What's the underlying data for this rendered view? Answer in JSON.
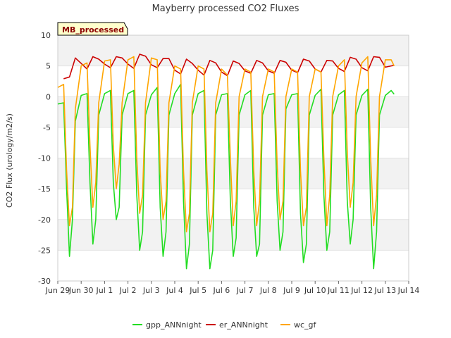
{
  "chart_data": {
    "type": "line",
    "title": "Mayberry processed CO2 Fluxes",
    "ylabel": "CO2 Flux (urology/m2/s)",
    "xlabel": "",
    "badge": "MB_processed",
    "ylim": [
      -30,
      10
    ],
    "yticks": [
      10,
      5,
      0,
      -5,
      -10,
      -15,
      -20,
      -25,
      -30
    ],
    "xlim": [
      "2016-06-29",
      "2016-07-14"
    ],
    "xticks": [
      {
        "date": "2016-06-29",
        "label": "Jun 29"
      },
      {
        "date": "2016-06-30",
        "label": "Jun 30"
      },
      {
        "date": "2016-07-01",
        "label": "Jul 1"
      },
      {
        "date": "2016-07-02",
        "label": "Jul 2"
      },
      {
        "date": "2016-07-03",
        "label": "Jul 3"
      },
      {
        "date": "2016-07-04",
        "label": "Jul 4"
      },
      {
        "date": "2016-07-05",
        "label": "Jul 5"
      },
      {
        "date": "2016-07-06",
        "label": "Jul 6"
      },
      {
        "date": "2016-07-07",
        "label": "Jul 7"
      },
      {
        "date": "2016-07-08",
        "label": "Jul 8"
      },
      {
        "date": "2016-07-09",
        "label": "Jul 9"
      },
      {
        "date": "2016-07-10",
        "label": "Jul 10"
      },
      {
        "date": "2016-07-11",
        "label": "Jul 11"
      },
      {
        "date": "2016-07-12",
        "label": "Jul 12"
      },
      {
        "date": "2016-07-13",
        "label": "Jul 13"
      },
      {
        "date": "2016-07-14",
        "label": "Jul 14"
      }
    ],
    "grid": "horizontal bands",
    "legend_position": "bottom",
    "series": [
      {
        "name": "gpp_ANNnight",
        "color": "#22dd22",
        "x": [
          "2016-06-29",
          "2016-06-29 06:00",
          "2016-06-29 09:00",
          "2016-06-29 12:00",
          "2016-06-29 15:00",
          "2016-06-29 18:00",
          "2016-06-30",
          "2016-06-30 06:00",
          "2016-06-30 09:00",
          "2016-06-30 12:00",
          "2016-06-30 15:00",
          "2016-06-30 18:00",
          "2016-07-01",
          "2016-07-01 06:00",
          "2016-07-01 09:00",
          "2016-07-01 12:00",
          "2016-07-01 15:00",
          "2016-07-01 18:00",
          "2016-07-02",
          "2016-07-02 06:00",
          "2016-07-02 09:00",
          "2016-07-02 12:00",
          "2016-07-02 15:00",
          "2016-07-02 18:00",
          "2016-07-03",
          "2016-07-03 06:00",
          "2016-07-03 09:00",
          "2016-07-03 12:00",
          "2016-07-03 15:00",
          "2016-07-03 18:00",
          "2016-07-04",
          "2016-07-04 06:00",
          "2016-07-04 09:00",
          "2016-07-04 12:00",
          "2016-07-04 15:00",
          "2016-07-04 18:00",
          "2016-07-05",
          "2016-07-05 06:00",
          "2016-07-05 09:00",
          "2016-07-05 12:00",
          "2016-07-05 15:00",
          "2016-07-05 18:00",
          "2016-07-06",
          "2016-07-06 06:00",
          "2016-07-06 09:00",
          "2016-07-06 12:00",
          "2016-07-06 15:00",
          "2016-07-06 18:00",
          "2016-07-07",
          "2016-07-07 06:00",
          "2016-07-07 09:00",
          "2016-07-07 12:00",
          "2016-07-07 15:00",
          "2016-07-07 18:00",
          "2016-07-08",
          "2016-07-08 06:00",
          "2016-07-08 09:00",
          "2016-07-08 12:00",
          "2016-07-08 15:00",
          "2016-07-08 18:00",
          "2016-07-09",
          "2016-07-09 06:00",
          "2016-07-09 09:00",
          "2016-07-09 12:00",
          "2016-07-09 15:00",
          "2016-07-09 18:00",
          "2016-07-10",
          "2016-07-10 06:00",
          "2016-07-10 09:00",
          "2016-07-10 12:00",
          "2016-07-10 15:00",
          "2016-07-10 18:00",
          "2016-07-11",
          "2016-07-11 06:00",
          "2016-07-11 09:00",
          "2016-07-11 12:00",
          "2016-07-11 15:00",
          "2016-07-11 18:00",
          "2016-07-12",
          "2016-07-12 06:00",
          "2016-07-12 09:00",
          "2016-07-12 12:00",
          "2016-07-12 15:00",
          "2016-07-12 18:00",
          "2016-07-13",
          "2016-07-13 06:00",
          "2016-07-13 09:00"
        ],
        "values": [
          -1.2,
          -1.0,
          -15,
          -26,
          -20,
          -4,
          0.2,
          0.5,
          -14,
          -24,
          -20,
          -3,
          0.5,
          1.0,
          -14,
          -20,
          -18,
          -3,
          0.5,
          1.0,
          -16,
          -25,
          -22,
          -3,
          0.3,
          1.5,
          -18,
          -26,
          -22,
          -3,
          0.5,
          2.0,
          -17,
          -28,
          -24,
          -3,
          0.5,
          1.0,
          -19,
          -28,
          -25,
          -3,
          0.3,
          0.5,
          -17,
          -26,
          -23,
          -3,
          0.3,
          1.0,
          -18,
          -26,
          -24,
          -3,
          0.3,
          0.5,
          -17,
          -25,
          -22,
          -2,
          0.3,
          0.5,
          -19,
          -27,
          -24,
          -3,
          0.2,
          1.2,
          -16,
          -25,
          -22,
          -3,
          0.3,
          1.0,
          -17,
          -24,
          -20,
          -3,
          0.2,
          1.2,
          -18,
          -28,
          -22,
          -3,
          0.2,
          1.0,
          0.4
        ]
      },
      {
        "name": "er_ANNnight",
        "color": "#cc0000",
        "x": [
          "2016-06-29 06:00",
          "2016-06-29 12:00",
          "2016-06-29 18:00",
          "2016-06-30",
          "2016-06-30 06:00",
          "2016-06-30 12:00",
          "2016-06-30 18:00",
          "2016-07-01",
          "2016-07-01 06:00",
          "2016-07-01 12:00",
          "2016-07-01 18:00",
          "2016-07-02",
          "2016-07-02 06:00",
          "2016-07-02 12:00",
          "2016-07-02 18:00",
          "2016-07-03",
          "2016-07-03 06:00",
          "2016-07-03 12:00",
          "2016-07-03 18:00",
          "2016-07-04",
          "2016-07-04 06:00",
          "2016-07-04 12:00",
          "2016-07-04 18:00",
          "2016-07-05",
          "2016-07-05 06:00",
          "2016-07-05 12:00",
          "2016-07-05 18:00",
          "2016-07-06",
          "2016-07-06 06:00",
          "2016-07-06 12:00",
          "2016-07-06 18:00",
          "2016-07-07",
          "2016-07-07 06:00",
          "2016-07-07 12:00",
          "2016-07-07 18:00",
          "2016-07-08",
          "2016-07-08 06:00",
          "2016-07-08 12:00",
          "2016-07-08 18:00",
          "2016-07-09",
          "2016-07-09 06:00",
          "2016-07-09 12:00",
          "2016-07-09 18:00",
          "2016-07-10",
          "2016-07-10 06:00",
          "2016-07-10 12:00",
          "2016-07-10 18:00",
          "2016-07-11",
          "2016-07-11 06:00",
          "2016-07-11 12:00",
          "2016-07-11 18:00",
          "2016-07-12",
          "2016-07-12 06:00",
          "2016-07-12 12:00",
          "2016-07-12 18:00",
          "2016-07-13",
          "2016-07-13 06:00",
          "2016-07-13 09:00"
        ],
        "values": [
          2.9,
          3.2,
          6.3,
          5.4,
          4.5,
          6.5,
          6.1,
          5.3,
          4.7,
          6.5,
          6.3,
          5.3,
          4.6,
          6.9,
          6.6,
          5.2,
          4.7,
          6.2,
          6.2,
          4.3,
          3.7,
          6.1,
          5.4,
          4.3,
          3.5,
          5.9,
          5.5,
          4.0,
          3.4,
          5.8,
          5.4,
          4.2,
          3.8,
          5.9,
          5.5,
          4.2,
          3.8,
          5.9,
          5.6,
          4.3,
          3.9,
          6.1,
          5.8,
          4.5,
          4.0,
          5.9,
          5.8,
          4.6,
          4.1,
          6.4,
          6.1,
          4.7,
          4.2,
          6.5,
          6.4,
          4.8,
          5.0,
          5.1
        ]
      },
      {
        "name": "wc_gf",
        "color": "#ffa500",
        "x": [
          "2016-06-29",
          "2016-06-29 06:00",
          "2016-06-29 09:00",
          "2016-06-29 12:00",
          "2016-06-29 15:00",
          "2016-06-29 18:00",
          "2016-06-30",
          "2016-06-30 06:00",
          "2016-06-30 09:00",
          "2016-06-30 12:00",
          "2016-06-30 15:00",
          "2016-06-30 18:00",
          "2016-07-01",
          "2016-07-01 06:00",
          "2016-07-01 09:00",
          "2016-07-01 12:00",
          "2016-07-01 15:00",
          "2016-07-01 18:00",
          "2016-07-02",
          "2016-07-02 06:00",
          "2016-07-02 09:00",
          "2016-07-02 12:00",
          "2016-07-02 15:00",
          "2016-07-02 18:00",
          "2016-07-03",
          "2016-07-03 06:00",
          "2016-07-03 09:00",
          "2016-07-03 12:00",
          "2016-07-03 15:00",
          "2016-07-03 18:00",
          "2016-07-04",
          "2016-07-04 06:00",
          "2016-07-04 09:00",
          "2016-07-04 12:00",
          "2016-07-04 15:00",
          "2016-07-04 18:00",
          "2016-07-05",
          "2016-07-05 06:00",
          "2016-07-05 09:00",
          "2016-07-05 12:00",
          "2016-07-05 15:00",
          "2016-07-05 18:00",
          "2016-07-06",
          "2016-07-06 06:00",
          "2016-07-06 09:00",
          "2016-07-06 12:00",
          "2016-07-06 15:00",
          "2016-07-06 18:00",
          "2016-07-07",
          "2016-07-07 06:00",
          "2016-07-07 09:00",
          "2016-07-07 12:00",
          "2016-07-07 15:00",
          "2016-07-07 18:00",
          "2016-07-08",
          "2016-07-08 06:00",
          "2016-07-08 09:00",
          "2016-07-08 12:00",
          "2016-07-08 15:00",
          "2016-07-08 18:00",
          "2016-07-09",
          "2016-07-09 06:00",
          "2016-07-09 09:00",
          "2016-07-09 12:00",
          "2016-07-09 15:00",
          "2016-07-09 18:00",
          "2016-07-10",
          "2016-07-10 06:00",
          "2016-07-10 09:00",
          "2016-07-10 12:00",
          "2016-07-10 15:00",
          "2016-07-10 18:00",
          "2016-07-11",
          "2016-07-11 06:00",
          "2016-07-11 09:00",
          "2016-07-11 12:00",
          "2016-07-11 15:00",
          "2016-07-11 18:00",
          "2016-07-12",
          "2016-07-12 06:00",
          "2016-07-12 09:00",
          "2016-07-12 12:00",
          "2016-07-12 15:00",
          "2016-07-12 18:00",
          "2016-07-13",
          "2016-07-13 06:00",
          "2016-07-13 09:00"
        ],
        "values": [
          1.5,
          2.0,
          -12,
          -21,
          -18,
          -2,
          5.0,
          5.5,
          -8,
          -18,
          -14,
          -1,
          5.8,
          6.0,
          -8,
          -15,
          -11,
          -1,
          6.0,
          6.5,
          -10,
          -19,
          -16,
          -1,
          6.3,
          6.0,
          -12,
          -20,
          -17,
          -1,
          5.0,
          4.5,
          -12,
          -22,
          -19,
          -1,
          5.0,
          4.5,
          -12,
          -22,
          -19,
          -1,
          4.5,
          3.5,
          -10,
          -21,
          -17,
          0,
          4.5,
          4.0,
          -12,
          -21,
          -17,
          0,
          4.5,
          4.0,
          -11,
          -20,
          -17,
          0,
          4.5,
          4.0,
          -12,
          -21,
          -18,
          0,
          4.5,
          4.0,
          -10,
          -21,
          -16,
          0,
          5.0,
          6.0,
          -9,
          -18,
          -14,
          0,
          5.5,
          6.5,
          -10,
          -21,
          -16,
          0,
          6.0,
          6.0,
          5.0
        ]
      }
    ]
  }
}
